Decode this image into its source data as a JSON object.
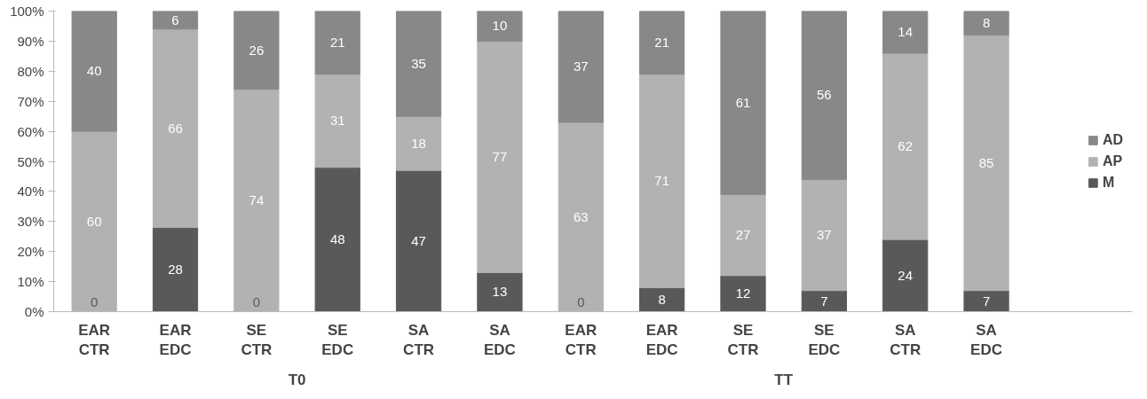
{
  "chart_data": {
    "type": "bar",
    "stacked": true,
    "data_labels": true,
    "legend": "right",
    "grid": false,
    "categories": [
      "EAR CTR",
      "EAR EDC",
      "SE CTR",
      "SE EDC",
      "SA CTR",
      "SA EDC",
      "EAR CTR",
      "EAR EDC",
      "SE CTR",
      "SE EDC",
      "SA CTR",
      "SA EDC"
    ],
    "series": [
      {
        "name": "M",
        "color": "#595959",
        "values": [
          0,
          28,
          0,
          48,
          47,
          13,
          0,
          8,
          12,
          7,
          24,
          7
        ]
      },
      {
        "name": "AP",
        "color": "#b2b2b2",
        "values": [
          60,
          66,
          74,
          31,
          18,
          77,
          63,
          71,
          27,
          37,
          62,
          85
        ]
      },
      {
        "name": "AD",
        "color": "#888888",
        "values": [
          40,
          6,
          26,
          21,
          35,
          10,
          37,
          21,
          61,
          56,
          14,
          8
        ]
      }
    ],
    "ylim": [
      0,
      100
    ],
    "yticks": [
      {
        "value": 0,
        "label": "0%"
      },
      {
        "value": 10,
        "label": "10%"
      },
      {
        "value": 20,
        "label": "20%"
      },
      {
        "value": 30,
        "label": "30%"
      },
      {
        "value": 40,
        "label": "40%"
      },
      {
        "value": 50,
        "label": "50%"
      },
      {
        "value": 60,
        "label": "60%"
      },
      {
        "value": 70,
        "label": "70%"
      },
      {
        "value": 80,
        "label": "80%"
      },
      {
        "value": 90,
        "label": "90%"
      },
      {
        "value": 100,
        "label": "100%"
      }
    ],
    "annotations": [
      "T0",
      "TT"
    ]
  }
}
